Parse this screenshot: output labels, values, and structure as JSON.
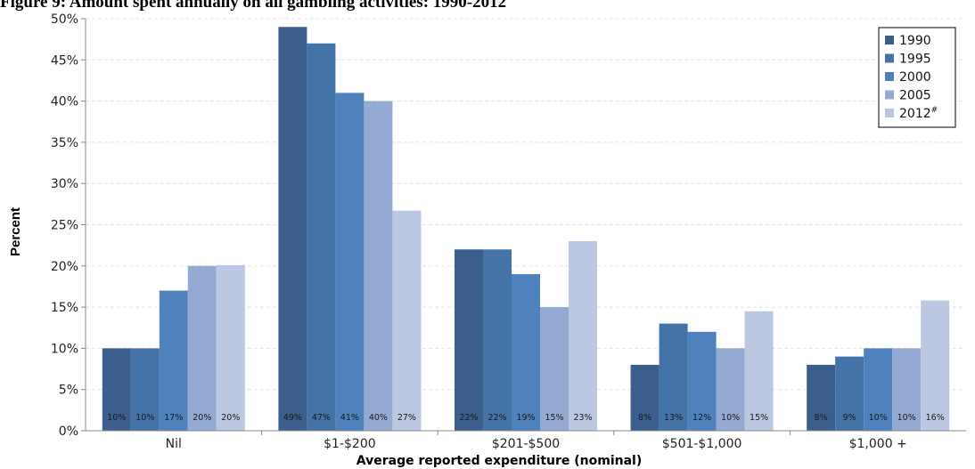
{
  "chart_data": {
    "type": "bar",
    "title": "Figure 9: Amount spent annually on all gambling activities: 1990-2012",
    "xlabel": "Average reported expenditure (nominal)",
    "ylabel": "Percent",
    "ylim": [
      0,
      50
    ],
    "y_ticks": [
      "0%",
      "5%",
      "10%",
      "15%",
      "20%",
      "25%",
      "30%",
      "35%",
      "40%",
      "45%",
      "50%"
    ],
    "categories": [
      "Nil",
      "$1-$200",
      "$201-$500",
      "$501-$1,000",
      "$1,000 +"
    ],
    "grid": true,
    "legend_position": "top-right",
    "series": [
      {
        "name": "1990",
        "legend_sup": "",
        "color": "#3b5e8c",
        "values": [
          10,
          49,
          22,
          8,
          8
        ],
        "labels": [
          "10%",
          "49%",
          "22%",
          "8%",
          "8%"
        ]
      },
      {
        "name": "1995",
        "legend_sup": "",
        "color": "#4473a8",
        "values": [
          10,
          47,
          22,
          13,
          9
        ],
        "labels": [
          "10%",
          "47%",
          "22%",
          "13%",
          "9%"
        ]
      },
      {
        "name": "2000",
        "legend_sup": "",
        "color": "#4f81bd",
        "values": [
          17,
          41,
          19,
          12,
          10
        ],
        "labels": [
          "17%",
          "41%",
          "19%",
          "12%",
          "10%"
        ]
      },
      {
        "name": "2005",
        "legend_sup": "",
        "color": "#95aad2",
        "values": [
          20,
          40,
          15,
          10,
          10
        ],
        "labels": [
          "20%",
          "40%",
          "15%",
          "10%",
          "10%"
        ]
      },
      {
        "name": "2012",
        "legend_sup": "#",
        "color": "#bcc8e2",
        "values": [
          20.1,
          26.7,
          23,
          14.5,
          15.8
        ],
        "labels": [
          "20%",
          "27%",
          "23%",
          "15%",
          "16%"
        ]
      }
    ]
  }
}
